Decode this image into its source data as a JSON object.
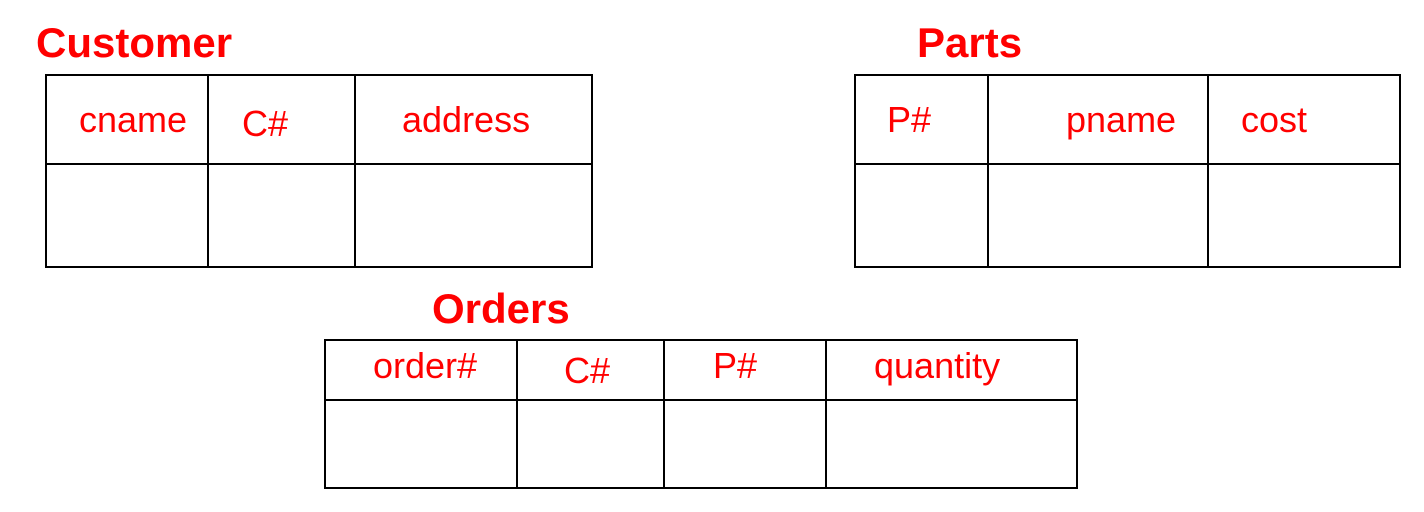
{
  "colors": {
    "accent": "#ff0000",
    "border": "#000000",
    "background": "#ffffff"
  },
  "customer": {
    "title": "Customer",
    "columns": [
      "cname",
      "C#",
      "address"
    ]
  },
  "parts": {
    "title": "Parts",
    "columns": [
      "P#",
      "pname",
      "cost"
    ]
  },
  "orders": {
    "title": "Orders",
    "columns": [
      "order#",
      "C#",
      "P#",
      "quantity"
    ]
  }
}
